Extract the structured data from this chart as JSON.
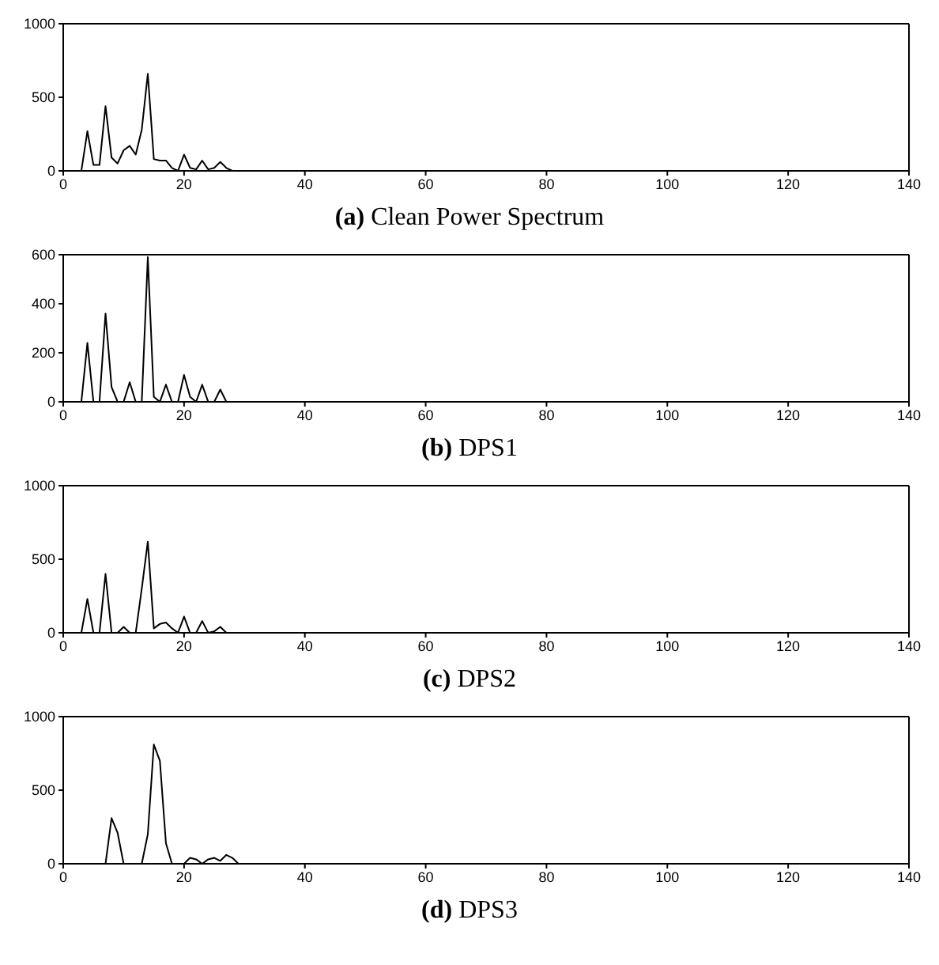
{
  "chart_data": [
    {
      "type": "line",
      "title": "(a) Clean Power Spectrum",
      "x": [
        1,
        2,
        3,
        4,
        5,
        6,
        7,
        8,
        9,
        10,
        11,
        12,
        13,
        14,
        15,
        16,
        17,
        18,
        19,
        20,
        21,
        22,
        23,
        24,
        25,
        26,
        27,
        28,
        128
      ],
      "series": [
        {
          "color": "#000000",
          "values": [
            0,
            0,
            0,
            270,
            40,
            40,
            440,
            90,
            50,
            140,
            170,
            110,
            280,
            660,
            80,
            70,
            70,
            20,
            0,
            110,
            20,
            10,
            70,
            10,
            20,
            60,
            20,
            0,
            0
          ]
        }
      ],
      "xlim": [
        0,
        140
      ],
      "xticks": [
        0,
        20,
        40,
        60,
        80,
        100,
        120,
        140
      ],
      "ylim": [
        0,
        1000
      ],
      "yticks": [
        0,
        500,
        1000
      ],
      "grid": false,
      "legend": false,
      "marker": "none",
      "line_style": "solid"
    },
    {
      "type": "line",
      "title": "(b) DPS1",
      "x": [
        1,
        2,
        3,
        4,
        5,
        6,
        7,
        8,
        9,
        10,
        11,
        12,
        13,
        14,
        15,
        16,
        17,
        18,
        19,
        20,
        21,
        22,
        23,
        24,
        25,
        26,
        27,
        28,
        128
      ],
      "series": [
        {
          "color": "#000000",
          "values": [
            0,
            0,
            0,
            240,
            0,
            0,
            360,
            60,
            0,
            0,
            80,
            0,
            0,
            590,
            20,
            0,
            70,
            0,
            0,
            110,
            20,
            0,
            70,
            0,
            0,
            50,
            0,
            0,
            0
          ]
        }
      ],
      "xlim": [
        0,
        140
      ],
      "xticks": [
        0,
        20,
        40,
        60,
        80,
        100,
        120,
        140
      ],
      "ylim": [
        0,
        600
      ],
      "yticks": [
        0,
        200,
        400,
        600
      ],
      "grid": false,
      "legend": false,
      "marker": "none",
      "line_style": "solid"
    },
    {
      "type": "line",
      "title": "(c) DPS2",
      "x": [
        1,
        2,
        3,
        4,
        5,
        6,
        7,
        8,
        9,
        10,
        11,
        12,
        13,
        14,
        15,
        16,
        17,
        18,
        19,
        20,
        21,
        22,
        23,
        24,
        25,
        26,
        27,
        28,
        128
      ],
      "series": [
        {
          "color": "#000000",
          "values": [
            0,
            0,
            0,
            230,
            0,
            0,
            400,
            0,
            0,
            40,
            0,
            0,
            300,
            620,
            30,
            60,
            70,
            30,
            0,
            110,
            0,
            0,
            80,
            0,
            10,
            40,
            0,
            0,
            0
          ]
        }
      ],
      "xlim": [
        0,
        140
      ],
      "xticks": [
        0,
        20,
        40,
        60,
        80,
        100,
        120,
        140
      ],
      "ylim": [
        0,
        1000
      ],
      "yticks": [
        0,
        500,
        1000
      ],
      "grid": false,
      "legend": false,
      "marker": "none",
      "line_style": "solid"
    },
    {
      "type": "line",
      "title": "(d) DPS3",
      "x": [
        1,
        2,
        3,
        4,
        5,
        6,
        7,
        8,
        9,
        10,
        11,
        12,
        13,
        14,
        15,
        16,
        17,
        18,
        19,
        20,
        21,
        22,
        23,
        24,
        25,
        26,
        27,
        28,
        29,
        128
      ],
      "series": [
        {
          "color": "#000000",
          "values": [
            0,
            0,
            0,
            0,
            0,
            0,
            0,
            310,
            210,
            0,
            0,
            0,
            0,
            200,
            810,
            700,
            140,
            0,
            0,
            0,
            40,
            30,
            0,
            30,
            40,
            20,
            60,
            40,
            0,
            0
          ]
        }
      ],
      "xlim": [
        0,
        140
      ],
      "xticks": [
        0,
        20,
        40,
        60,
        80,
        100,
        120,
        140
      ],
      "ylim": [
        0,
        1000
      ],
      "yticks": [
        0,
        500,
        1000
      ],
      "grid": false,
      "legend": false,
      "marker": "none",
      "line_style": "solid"
    }
  ]
}
